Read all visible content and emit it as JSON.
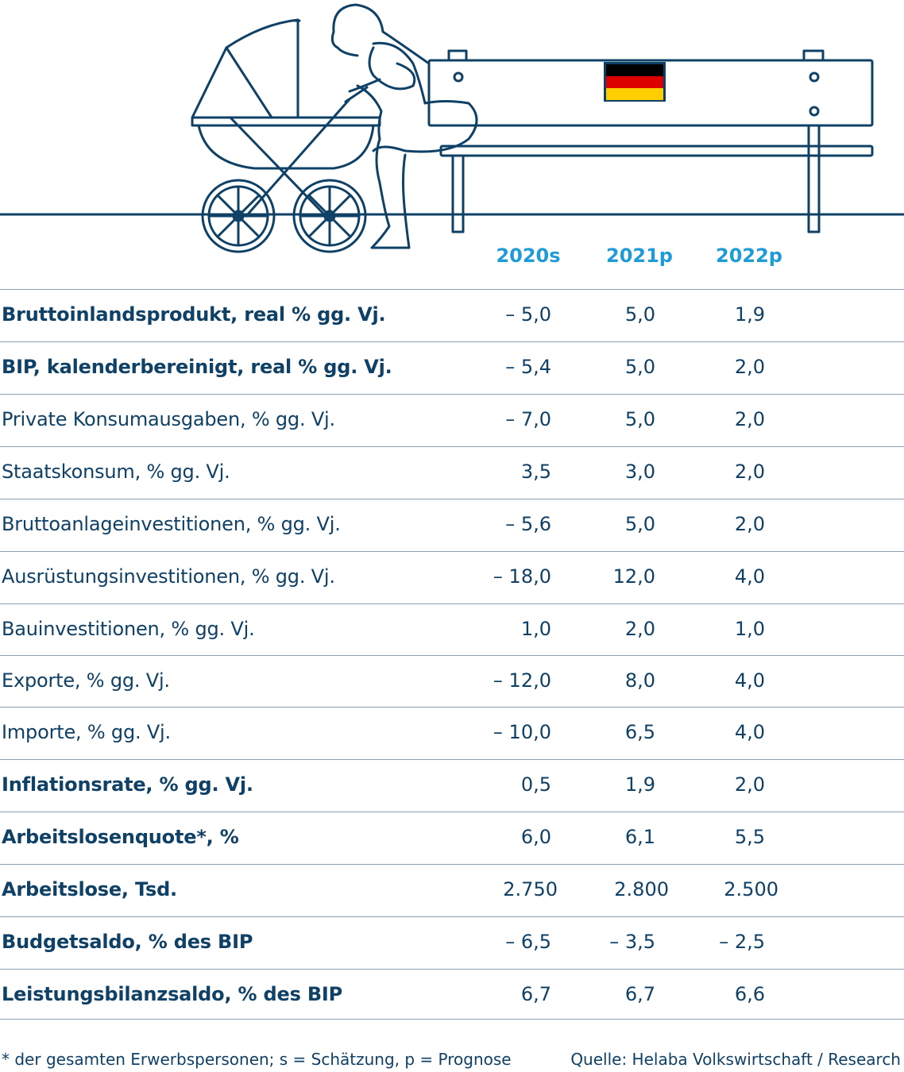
{
  "headers": [
    "2020s",
    "2021p",
    "2022p"
  ],
  "rows": [
    {
      "label": "Bruttoinlandsprodukt, real % gg. Vj.",
      "bold": true,
      "v": [
        "– 5,0",
        "5,0",
        "1,9"
      ]
    },
    {
      "label": "BIP, kalenderbereinigt, real % gg. Vj.",
      "bold": true,
      "v": [
        "– 5,4",
        "5,0",
        "2,0"
      ]
    },
    {
      "label": "Private Konsumausgaben, % gg. Vj.",
      "bold": false,
      "v": [
        "– 7,0",
        "5,0",
        "2,0"
      ]
    },
    {
      "label": "Staatskonsum, % gg. Vj.",
      "bold": false,
      "v": [
        "3,5",
        "3,0",
        "2,0"
      ]
    },
    {
      "label": "Bruttoanlageinvestitionen, % gg. Vj.",
      "bold": false,
      "v": [
        "– 5,6",
        "5,0",
        "2,0"
      ]
    },
    {
      "label": "Ausrüstungsinvestitionen, % gg. Vj.",
      "bold": false,
      "v": [
        "– 18,0",
        "12,0",
        "4,0"
      ]
    },
    {
      "label": "Bauinvestitionen, % gg. Vj.",
      "bold": false,
      "v": [
        "1,0",
        "2,0",
        "1,0"
      ]
    },
    {
      "label": "Exporte, % gg. Vj.",
      "bold": false,
      "v": [
        "– 12,0",
        "8,0",
        "4,0"
      ]
    },
    {
      "label": "Importe, % gg. Vj.",
      "bold": false,
      "v": [
        "– 10,0",
        "6,5",
        "4,0"
      ]
    },
    {
      "label": "Inflationsrate, % gg. Vj.",
      "bold": true,
      "v": [
        "0,5",
        "1,9",
        "2,0"
      ]
    },
    {
      "label": "Arbeitslosenquote*, %",
      "bold": true,
      "v": [
        "6,0",
        "6,1",
        "5,5"
      ]
    },
    {
      "label": "Arbeitslose, Tsd.",
      "bold": true,
      "v": [
        "2.750",
        "2.800",
        "2.500"
      ],
      "wide": true
    },
    {
      "label": "Budgetsaldo, % des BIP",
      "bold": true,
      "v": [
        "– 6,5",
        "– 3,5",
        "– 2,5"
      ]
    },
    {
      "label": "Leistungsbilanzsaldo, % des BIP",
      "bold": true,
      "v": [
        "6,7",
        "6,7",
        "6,6"
      ]
    }
  ],
  "footnote": "* der gesamten Erwerbspersonen; s = Schätzung, p = Prognose",
  "source": "Quelle: Helaba Volkswirtschaft / Research",
  "colors": {
    "text": "#0f4066",
    "header": "#1f9bd7",
    "rule": "#8aa0b3",
    "flag": [
      "#000000",
      "#dd0000",
      "#ffce00"
    ]
  }
}
